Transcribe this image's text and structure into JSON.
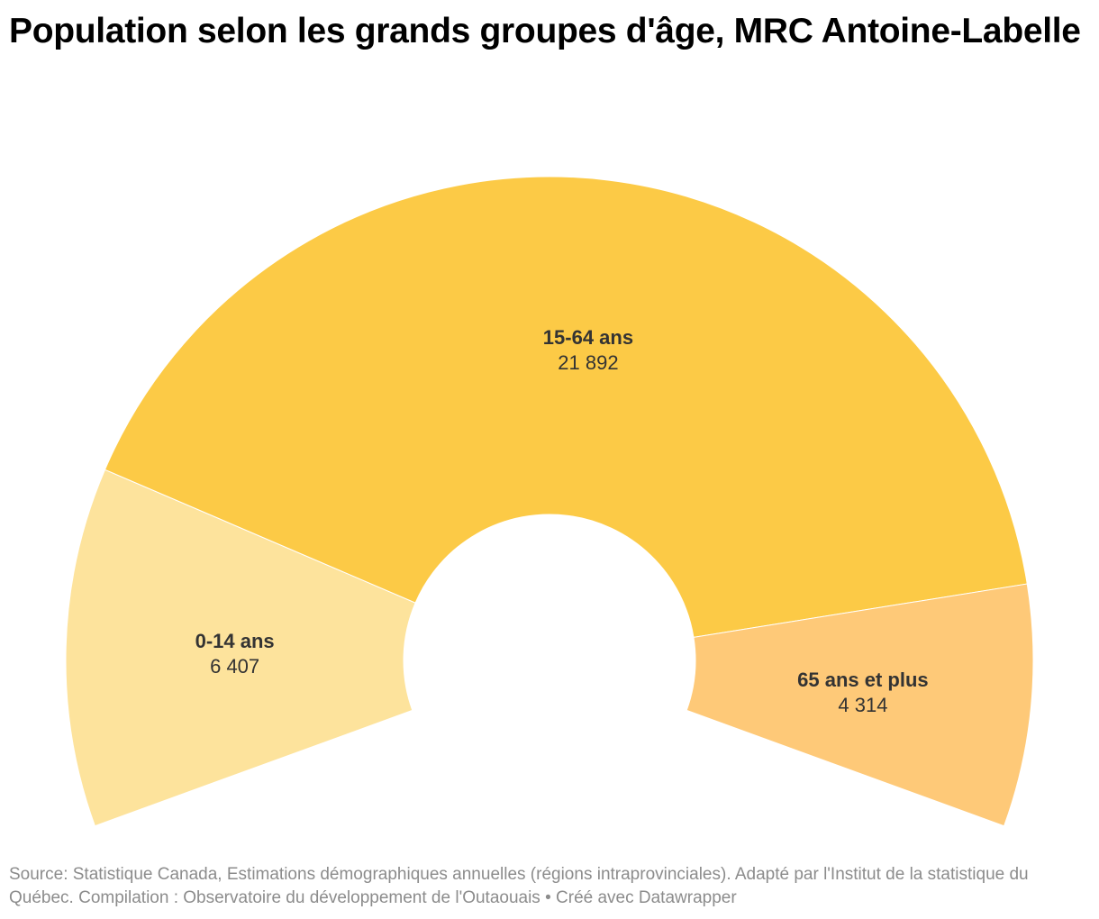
{
  "chart_data": {
    "type": "pie",
    "variant": "half-donut",
    "title": "Population selon les grands groupes d'âge, MRC Antoine-Labelle",
    "categories": [
      "0-14 ans",
      "15-64 ans",
      "65 ans et plus"
    ],
    "values": [
      6407,
      21892,
      4314
    ],
    "value_labels": [
      "6 407",
      "21 892",
      "4 314"
    ],
    "colors": [
      "#fde39c",
      "#fcca46",
      "#fec978"
    ],
    "source": "Source: Statistique Canada, Estimations démographiques annuelles (régions intraprovinciales). Adapté par l'Institut de la statistique du Québec. Compilation : Observatoire du développement de l'Outaouais • Créé avec Datawrapper"
  }
}
